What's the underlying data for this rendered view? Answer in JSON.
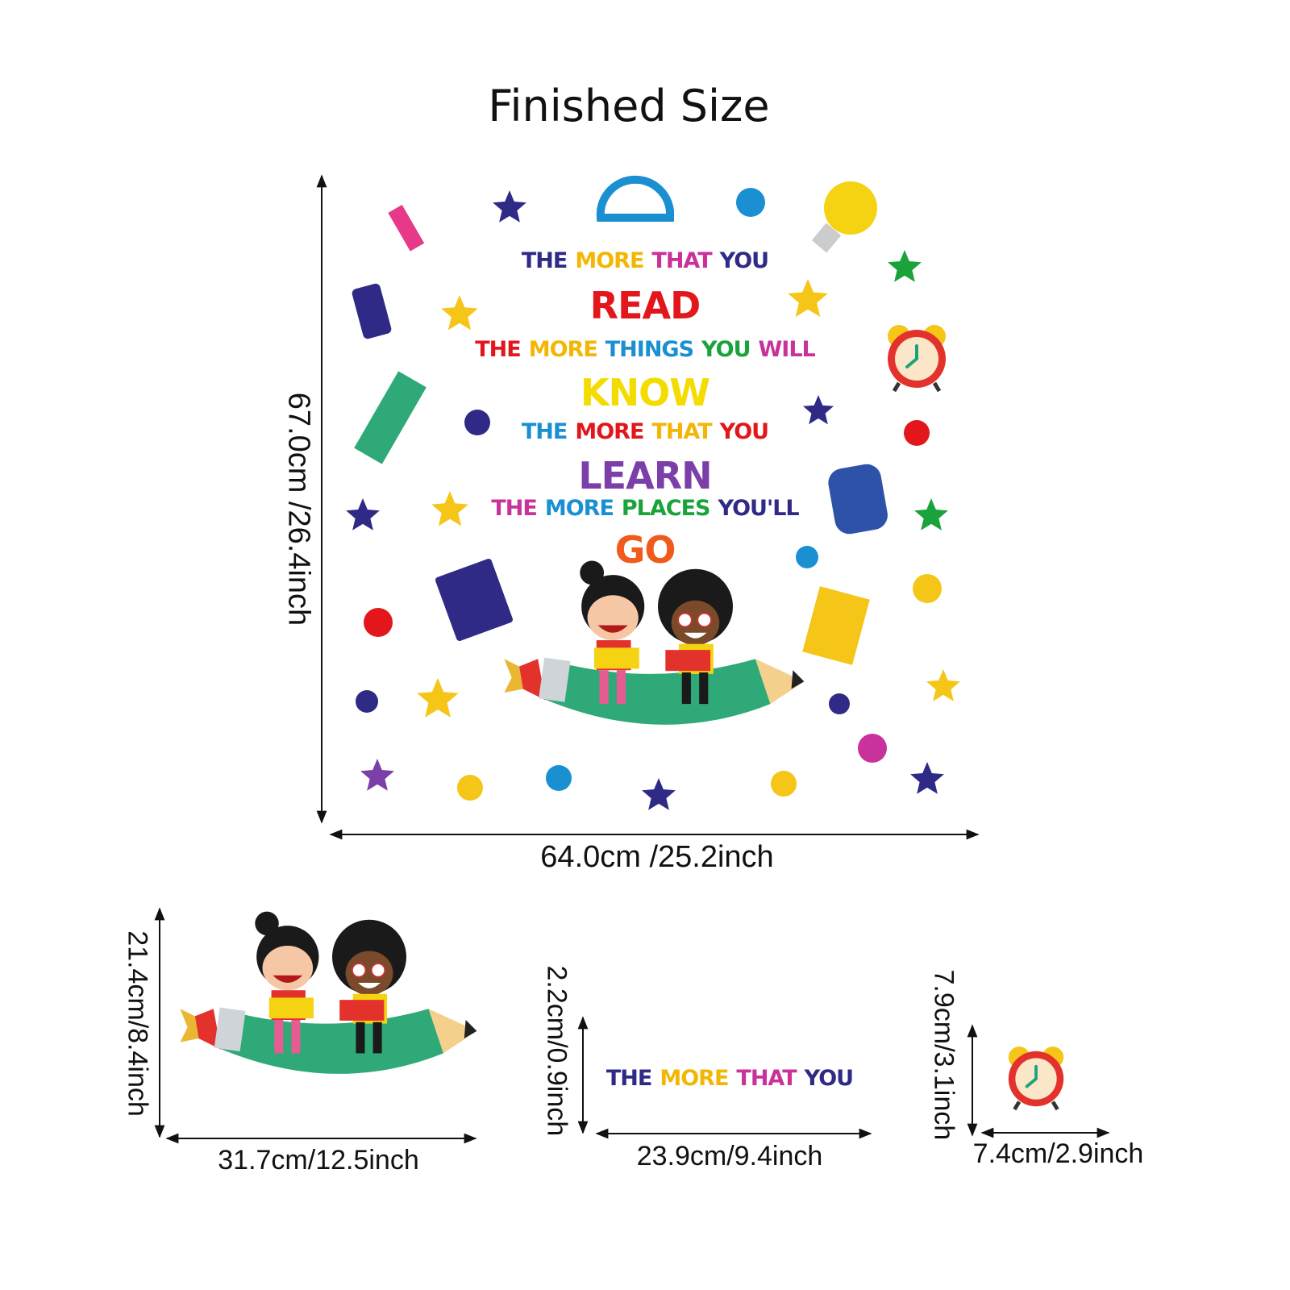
{
  "title": "Finished Size",
  "main_decal": {
    "height_label": "67.0cm /26.4inch",
    "width_label": "64.0cm /25.2inch",
    "quote_lines": [
      {
        "size": "small",
        "words": [
          {
            "text": "THE",
            "color": "#2e2a86"
          },
          {
            "text": "MORE",
            "color": "#f2b705"
          },
          {
            "text": "THAT",
            "color": "#c8329a"
          },
          {
            "text": "YOU",
            "color": "#2e2a86"
          }
        ]
      },
      {
        "size": "large",
        "words": [
          {
            "text": "READ",
            "color": "#e3161c"
          }
        ]
      },
      {
        "size": "small",
        "words": [
          {
            "text": "THE",
            "color": "#e3161c"
          },
          {
            "text": "MORE",
            "color": "#f2b705"
          },
          {
            "text": "THINGS",
            "color": "#1a8fd2"
          },
          {
            "text": "YOU",
            "color": "#1aa33a"
          },
          {
            "text": "WILL",
            "color": "#c8329a"
          }
        ]
      },
      {
        "size": "large",
        "words": [
          {
            "text": "KNOW",
            "color": "#f5dc00"
          }
        ]
      },
      {
        "size": "small",
        "words": [
          {
            "text": "THE",
            "color": "#1a8fd2"
          },
          {
            "text": "MORE",
            "color": "#e3161c"
          },
          {
            "text": "THAT",
            "color": "#f2b705"
          },
          {
            "text": "YOU",
            "color": "#e3161c"
          }
        ]
      },
      {
        "size": "large",
        "words": [
          {
            "text": "LEARN",
            "color": "#7a3fa8"
          }
        ]
      },
      {
        "size": "small",
        "words": [
          {
            "text": "THE",
            "color": "#c8329a"
          },
          {
            "text": "MORE",
            "color": "#1a8fd2"
          },
          {
            "text": "PLACES",
            "color": "#1aa33a"
          },
          {
            "text": "YOU'LL",
            "color": "#2e2a86"
          }
        ]
      },
      {
        "size": "large",
        "words": [
          {
            "text": "GO",
            "color": "#f05a1a"
          }
        ]
      }
    ]
  },
  "piece_kids": {
    "height_label": "21.4cm/8.4inch",
    "width_label": "31.7cm/12.5inch"
  },
  "piece_text": {
    "height_label": "2.2cm/0.9inch",
    "width_label": "23.9cm/9.4inch",
    "words": [
      {
        "text": "THE",
        "color": "#2e2a86"
      },
      {
        "text": "MORE",
        "color": "#f2b705"
      },
      {
        "text": "THAT",
        "color": "#c8329a"
      },
      {
        "text": "YOU",
        "color": "#2e2a86"
      }
    ]
  },
  "piece_clock": {
    "height_label": "7.9cm/3.1inch",
    "width_label": "7.4cm/2.9inch"
  },
  "icons": [
    "star-icon",
    "dot-icon",
    "highlighter-icon",
    "protractor-icon",
    "light-bulb-icon",
    "paint-palette-icon",
    "book-icon",
    "alarm-clock-icon",
    "backpack-icon",
    "calculator-icon",
    "notebook-icon",
    "pencil-kids-illustration"
  ]
}
